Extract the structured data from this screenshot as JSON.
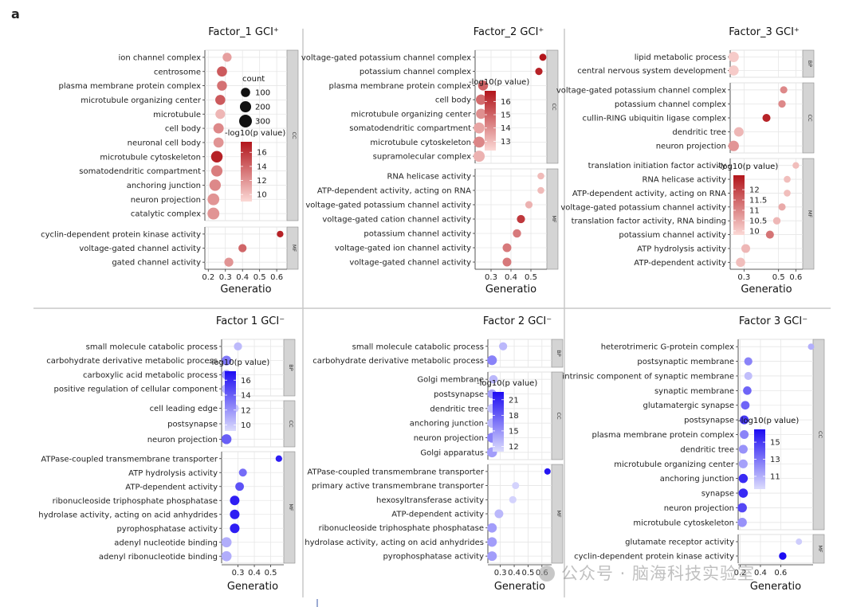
{
  "panel_letter": "a",
  "watermark": "公众号 · 脑海科技实验室",
  "colors": {
    "red_high": "#b2151b",
    "red_low": "#fbd9d6",
    "blue_high": "#1d0cf2",
    "blue_low": "#dcdcfd"
  },
  "chart_data": [
    {
      "type": "scatter",
      "title": "Factor_1 GCI⁺",
      "xlabel": "Generatio",
      "x_ticks": [
        0.2,
        0.3,
        0.4,
        0.5,
        0.6
      ],
      "xlim": [
        0.18,
        0.66
      ],
      "color_scale": "red",
      "size_legend": {
        "title": "count",
        "values": [
          100,
          200,
          300
        ]
      },
      "color_legend": {
        "title": "-log10(p value)",
        "ticks": [
          10,
          12,
          14,
          16
        ],
        "range": [
          9,
          17.5
        ]
      },
      "groups": [
        {
          "label": "CC",
          "terms": [
            {
              "term": "ion channel complex",
              "x": 0.31,
              "p": 11.5,
              "count": 90
            },
            {
              "term": "centrosome",
              "x": 0.28,
              "p": 14.5,
              "count": 140
            },
            {
              "term": "plasma membrane protein complex",
              "x": 0.28,
              "p": 13.5,
              "count": 130
            },
            {
              "term": "microtubule organizing center",
              "x": 0.27,
              "p": 14.5,
              "count": 135
            },
            {
              "term": "microtubule",
              "x": 0.27,
              "p": 10.5,
              "count": 120
            },
            {
              "term": "cell body",
              "x": 0.26,
              "p": 12.5,
              "count": 150
            },
            {
              "term": "neuronal cell body",
              "x": 0.26,
              "p": 12.0,
              "count": 140
            },
            {
              "term": "microtubule cytoskeleton",
              "x": 0.25,
              "p": 17.0,
              "count": 220
            },
            {
              "term": "somatodendritic compartment",
              "x": 0.25,
              "p": 13.0,
              "count": 200
            },
            {
              "term": "anchoring junction",
              "x": 0.24,
              "p": 12.5,
              "count": 210
            },
            {
              "term": "neuron projection",
              "x": 0.23,
              "p": 12.0,
              "count": 230
            },
            {
              "term": "catalytic complex",
              "x": 0.23,
              "p": 12.0,
              "count": 240
            }
          ]
        },
        {
          "label": "MF",
          "terms": [
            {
              "term": "cyclin-dependent protein kinase activity",
              "x": 0.62,
              "p": 17.0,
              "count": 20
            },
            {
              "term": "voltage-gated channel activity",
              "x": 0.4,
              "p": 14.0,
              "count": 60
            },
            {
              "term": "gated channel activity",
              "x": 0.32,
              "p": 12.0,
              "count": 90
            }
          ]
        }
      ]
    },
    {
      "type": "scatter",
      "title": "Factor_2 GCI⁺",
      "xlabel": "Generatio",
      "x_ticks": [
        0.3,
        0.4,
        0.5
      ],
      "xlim": [
        0.22,
        0.58
      ],
      "color_scale": "red",
      "color_legend": {
        "title": "-log10(p value)",
        "ticks": [
          13,
          14,
          15,
          16
        ],
        "range": [
          12.3,
          16.8
        ]
      },
      "groups": [
        {
          "label": "CC",
          "terms": [
            {
              "term": "voltage-gated potassium channel complex",
              "x": 0.56,
              "p": 16.8,
              "count": 30
            },
            {
              "term": "potassium channel complex",
              "x": 0.54,
              "p": 16.5,
              "count": 35
            },
            {
              "term": "plasma membrane protein complex",
              "x": 0.26,
              "p": 15.0,
              "count": 130
            },
            {
              "term": "cell body",
              "x": 0.25,
              "p": 14.8,
              "count": 150
            },
            {
              "term": "microtubule organizing center",
              "x": 0.25,
              "p": 14.0,
              "count": 140
            },
            {
              "term": "somatodendritic compartment",
              "x": 0.24,
              "p": 13.5,
              "count": 180
            },
            {
              "term": "microtubule cytoskeleton",
              "x": 0.24,
              "p": 14.2,
              "count": 190
            },
            {
              "term": "supramolecular complex",
              "x": 0.24,
              "p": 13.2,
              "count": 200
            }
          ]
        },
        {
          "label": "MF",
          "terms": [
            {
              "term": "RNA helicase activity",
              "x": 0.55,
              "p": 13.0,
              "count": 25
            },
            {
              "term": "ATP-dependent activity, acting on RNA",
              "x": 0.55,
              "p": 13.0,
              "count": 25
            },
            {
              "term": "voltage-gated potassium channel activity",
              "x": 0.49,
              "p": 13.2,
              "count": 35
            },
            {
              "term": "voltage-gated cation channel activity",
              "x": 0.45,
              "p": 16.0,
              "count": 60
            },
            {
              "term": "potassium channel activity",
              "x": 0.43,
              "p": 14.5,
              "count": 65
            },
            {
              "term": "voltage-gated ion channel activity",
              "x": 0.38,
              "p": 14.5,
              "count": 80
            },
            {
              "term": "voltage-gated channel activity",
              "x": 0.38,
              "p": 14.5,
              "count": 80
            }
          ]
        }
      ]
    },
    {
      "type": "scatter",
      "title": "Factor_3 GCI⁺",
      "xlabel": "Generatio",
      "x_ticks": [
        0.3,
        0.5,
        0.6
      ],
      "xlim": [
        0.22,
        0.64
      ],
      "color_scale": "red",
      "color_legend": {
        "title": "-log10(p value)",
        "ticks": [
          10,
          10.5,
          11,
          11.5,
          12
        ],
        "range": [
          9.8,
          12.7
        ]
      },
      "groups": [
        {
          "label": "BP",
          "terms": [
            {
              "term": "lipid metabolic process",
              "x": 0.24,
              "p": 10.0,
              "count": 150
            },
            {
              "term": "central nervous system development",
              "x": 0.24,
              "p": 10.0,
              "count": 140
            }
          ]
        },
        {
          "label": "CC",
          "terms": [
            {
              "term": "voltage-gated potassium channel complex",
              "x": 0.53,
              "p": 11.0,
              "count": 35
            },
            {
              "term": "potassium channel complex",
              "x": 0.52,
              "p": 11.0,
              "count": 40
            },
            {
              "term": "cullin-RING ubiquitin ligase complex",
              "x": 0.43,
              "p": 12.5,
              "count": 55
            },
            {
              "term": "dendritic tree",
              "x": 0.27,
              "p": 10.3,
              "count": 110
            },
            {
              "term": "neuron projection",
              "x": 0.24,
              "p": 10.8,
              "count": 160
            }
          ]
        },
        {
          "label": "MF",
          "terms": [
            {
              "term": "translation initiation factor activity",
              "x": 0.6,
              "p": 10.2,
              "count": 20
            },
            {
              "term": "RNA helicase activity",
              "x": 0.55,
              "p": 10.2,
              "count": 25
            },
            {
              "term": "ATP-dependent activity, acting on RNA",
              "x": 0.55,
              "p": 10.2,
              "count": 25
            },
            {
              "term": "voltage-gated potassium channel activity",
              "x": 0.52,
              "p": 10.5,
              "count": 35
            },
            {
              "term": "translation factor activity, RNA binding",
              "x": 0.49,
              "p": 10.3,
              "count": 40
            },
            {
              "term": "potassium channel activity",
              "x": 0.45,
              "p": 11.3,
              "count": 55
            },
            {
              "term": "ATP hydrolysis activity",
              "x": 0.31,
              "p": 10.3,
              "count": 80
            },
            {
              "term": "ATP-dependent activity",
              "x": 0.28,
              "p": 10.2,
              "count": 100
            }
          ]
        }
      ]
    },
    {
      "type": "scatter",
      "title": "Factor 1 GCI⁻",
      "xlabel": "Generatio",
      "x_ticks": [
        0.3,
        0.4,
        0.5
      ],
      "xlim": [
        0.2,
        0.58
      ],
      "color_scale": "blue",
      "color_legend": {
        "title": "-log10(p value)",
        "ticks": [
          10,
          12,
          14,
          16
        ],
        "range": [
          9.2,
          17.2
        ]
      },
      "groups": [
        {
          "label": "BP",
          "terms": [
            {
              "term": "small molecule catabolic process",
              "x": 0.3,
              "p": 10.5,
              "count": 60
            },
            {
              "term": "carbohydrate derivative metabolic process",
              "x": 0.23,
              "p": 13.0,
              "count": 120
            },
            {
              "term": "carboxylic acid metabolic process",
              "x": 0.23,
              "p": 11.5,
              "count": 110
            },
            {
              "term": "positive regulation of cellular component",
              "x": 0.23,
              "p": 10.5,
              "count": 115
            }
          ]
        },
        {
          "label": "CC",
          "terms": [
            {
              "term": "cell leading edge",
              "x": 0.28,
              "p": 10.0,
              "count": 60
            },
            {
              "term": "postsynapse",
              "x": 0.25,
              "p": 12.0,
              "count": 95
            },
            {
              "term": "neuron projection",
              "x": 0.23,
              "p": 14.0,
              "count": 130
            }
          ]
        },
        {
          "label": "MF",
          "terms": [
            {
              "term": "ATPase-coupled transmembrane transporter",
              "x": 0.55,
              "p": 16.5,
              "count": 20
            },
            {
              "term": "ATP hydrolysis activity",
              "x": 0.33,
              "p": 13.5,
              "count": 55
            },
            {
              "term": "ATP-dependent activity",
              "x": 0.31,
              "p": 14.5,
              "count": 75
            },
            {
              "term": "ribonucleoside triphosphate phosphatase",
              "x": 0.28,
              "p": 16.5,
              "count": 110
            },
            {
              "term": "hydrolase activity, acting on acid anhydrides",
              "x": 0.28,
              "p": 16.5,
              "count": 115
            },
            {
              "term": "pyrophosphatase activity",
              "x": 0.28,
              "p": 16.5,
              "count": 115
            },
            {
              "term": "adenyl nucleotide binding",
              "x": 0.23,
              "p": 11.0,
              "count": 140
            },
            {
              "term": "adenyl ribonucleotide binding",
              "x": 0.23,
              "p": 11.0,
              "count": 140
            }
          ]
        }
      ]
    },
    {
      "type": "scatter",
      "title": "Factor 2 GCI⁻",
      "xlabel": "Generatio",
      "x_ticks": [
        0.3,
        0.4,
        0.5,
        0.6
      ],
      "xlim": [
        0.21,
        0.67
      ],
      "color_scale": "blue",
      "color_legend": {
        "title": "-log10(p value)",
        "ticks": [
          12,
          15,
          18,
          21
        ],
        "range": [
          11,
          22.5
        ]
      },
      "groups": [
        {
          "label": "BP",
          "terms": [
            {
              "term": "small molecule catabolic process",
              "x": 0.32,
              "p": 13.0,
              "count": 60
            },
            {
              "term": "carbohydrate derivative metabolic process",
              "x": 0.24,
              "p": 16.0,
              "count": 120
            }
          ]
        },
        {
          "label": "CC",
          "terms": [
            {
              "term": "Golgi membrane",
              "x": 0.25,
              "p": 13.0,
              "count": 70
            },
            {
              "term": "postsynapse",
              "x": 0.24,
              "p": 14.5,
              "count": 90
            },
            {
              "term": "dendritic tree",
              "x": 0.24,
              "p": 12.5,
              "count": 100
            },
            {
              "term": "anchoring junction",
              "x": 0.24,
              "p": 13.0,
              "count": 110
            },
            {
              "term": "neuron projection",
              "x": 0.24,
              "p": 16.0,
              "count": 130
            },
            {
              "term": "Golgi apparatus",
              "x": 0.24,
              "p": 14.5,
              "count": 135
            }
          ]
        },
        {
          "label": "MF",
          "terms": [
            {
              "term": "ATPase-coupled transmembrane transporter",
              "x": 0.64,
              "p": 22.0,
              "count": 15
            },
            {
              "term": "primary active transmembrane transporter",
              "x": 0.41,
              "p": 11.5,
              "count": 30
            },
            {
              "term": "hexosyltransferase activity",
              "x": 0.39,
              "p": 11.5,
              "count": 35
            },
            {
              "term": "ATP-dependent activity",
              "x": 0.29,
              "p": 13.0,
              "count": 80
            },
            {
              "term": "ribonucleoside triphosphate phosphatase",
              "x": 0.24,
              "p": 14.5,
              "count": 110
            },
            {
              "term": "hydrolase activity, acting on acid anhydrides",
              "x": 0.24,
              "p": 14.5,
              "count": 115
            },
            {
              "term": "pyrophosphatase activity",
              "x": 0.24,
              "p": 14.5,
              "count": 115
            }
          ]
        }
      ]
    },
    {
      "type": "scatter",
      "title": "Factor 3 GCI⁻",
      "xlabel": "Generatio",
      "x_ticks": [
        0.2,
        0.4,
        0.6
      ],
      "xlim": [
        0.18,
        0.92
      ],
      "color_scale": "blue",
      "color_legend": {
        "title": "-log10(p value)",
        "ticks": [
          11,
          13,
          15
        ],
        "range": [
          9.5,
          16.5
        ]
      },
      "groups": [
        {
          "label": "CC",
          "terms": [
            {
              "term": "heterotrimeric G-protein complex",
              "x": 0.9,
              "p": 11.0,
              "count": 15
            },
            {
              "term": "postsynaptic membrane",
              "x": 0.28,
              "p": 12.5,
              "count": 60
            },
            {
              "term": "intrinsic component of synaptic membrane",
              "x": 0.28,
              "p": 10.5,
              "count": 55
            },
            {
              "term": "synaptic membrane",
              "x": 0.27,
              "p": 13.5,
              "count": 70
            },
            {
              "term": "glutamatergic synapse",
              "x": 0.25,
              "p": 13.5,
              "count": 75
            },
            {
              "term": "postsynapse",
              "x": 0.24,
              "p": 15.0,
              "count": 85
            },
            {
              "term": "plasma membrane protein complex",
              "x": 0.24,
              "p": 12.5,
              "count": 80
            },
            {
              "term": "dendritic tree",
              "x": 0.23,
              "p": 12.0,
              "count": 85
            },
            {
              "term": "microtubule organizing center",
              "x": 0.23,
              "p": 11.5,
              "count": 85
            },
            {
              "term": "anchoring junction",
              "x": 0.23,
              "p": 15.5,
              "count": 95
            },
            {
              "term": "synapse",
              "x": 0.23,
              "p": 15.5,
              "count": 100
            },
            {
              "term": "neuron projection",
              "x": 0.22,
              "p": 14.5,
              "count": 105
            },
            {
              "term": "microtubule cytoskeleton",
              "x": 0.22,
              "p": 12.0,
              "count": 100
            }
          ]
        },
        {
          "label": "MF",
          "terms": [
            {
              "term": "glutamate receptor activity",
              "x": 0.78,
              "p": 10.0,
              "count": 15
            },
            {
              "term": "cyclin-dependent protein kinase activity",
              "x": 0.62,
              "p": 16.5,
              "count": 40
            }
          ]
        }
      ]
    }
  ]
}
